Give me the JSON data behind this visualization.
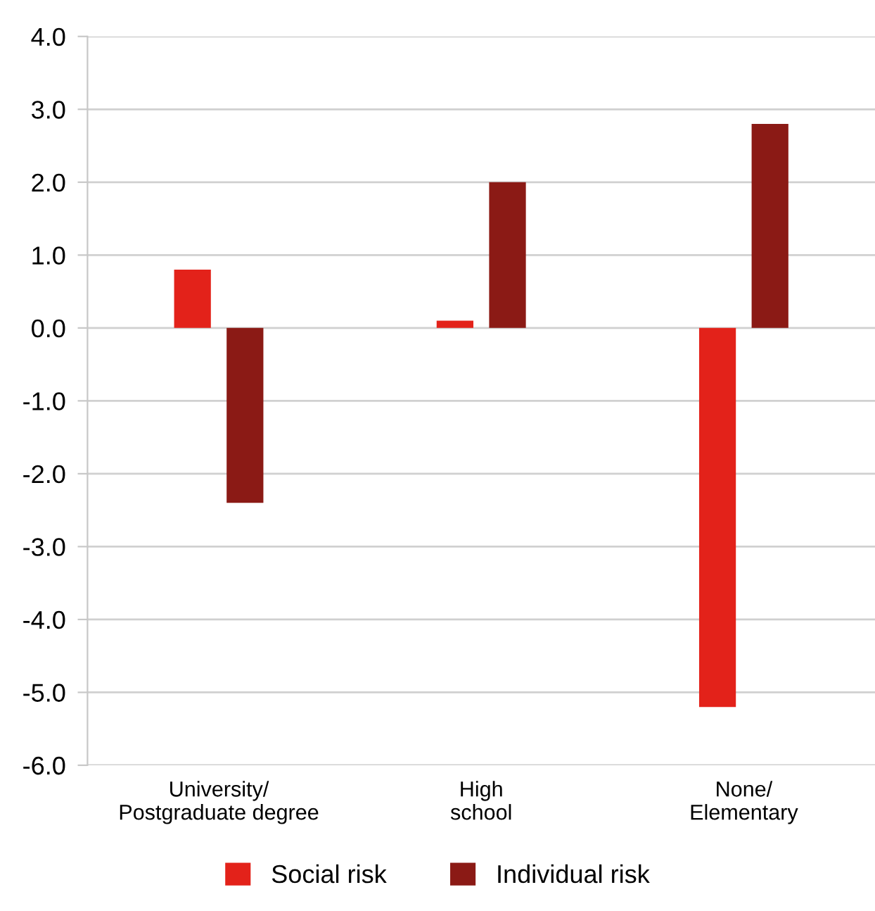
{
  "chart_data": {
    "type": "bar",
    "categories": [
      "University/\nPostgraduate degree",
      "High\nschool",
      "None/\nElementary"
    ],
    "series": [
      {
        "name": "Social risk",
        "color": "#e3221a",
        "values": [
          0.8,
          0.1,
          -5.2
        ]
      },
      {
        "name": "Individual risk",
        "color": "#8b1a15",
        "values": [
          -2.4,
          2.0,
          2.8
        ]
      }
    ],
    "ylim": [
      -6,
      4
    ],
    "yticks": [
      {
        "value": -6,
        "label": "-6.0"
      },
      {
        "value": -5,
        "label": "-5.0"
      },
      {
        "value": -4,
        "label": "-4.0"
      },
      {
        "value": -3,
        "label": "-3.0"
      },
      {
        "value": -2,
        "label": "-2.0"
      },
      {
        "value": -1,
        "label": "-1.0"
      },
      {
        "value": 0,
        "label": "0.0"
      },
      {
        "value": 1,
        "label": "1.0"
      },
      {
        "value": 2,
        "label": "2.0"
      },
      {
        "value": 3,
        "label": "3.0"
      },
      {
        "value": 4,
        "label": "4.0"
      }
    ],
    "grid": "y",
    "legend": "bottom"
  }
}
